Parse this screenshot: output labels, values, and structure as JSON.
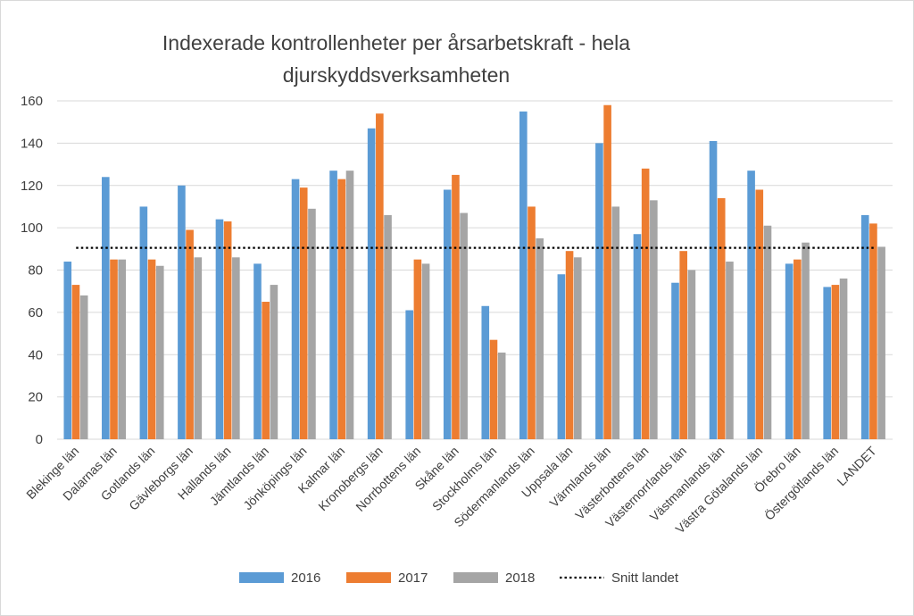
{
  "chart_data": {
    "type": "bar",
    "title_lines": [
      "Indexerade kontrollenheter per årsarbetskraft - hela",
      "djurskyddsverksamheten"
    ],
    "categories": [
      "Blekinge län",
      "Dalarnas län",
      "Gotlands län",
      "Gävleborgs län",
      "Hallands län",
      "Jämtlands län",
      "Jönköpings län",
      "Kalmar län",
      "Kronobergs län",
      "Norrbottens län",
      "Skåne län",
      "Stockholms län",
      "Södermanlands län",
      "Uppsala län",
      "Värmlands län",
      "Västerbottens län",
      "Västernorrlands län",
      "Västmanlands län",
      "Västra Götalands län",
      "Örebro län",
      "Östergötlands län",
      "LANDET"
    ],
    "series": [
      {
        "name": "2016",
        "color": "#5b9bd5",
        "values": [
          84,
          124,
          110,
          120,
          104,
          83,
          123,
          127,
          147,
          61,
          118,
          63,
          155,
          78,
          140,
          97,
          74,
          141,
          127,
          83,
          72,
          106
        ]
      },
      {
        "name": "2017",
        "color": "#ed7d31",
        "values": [
          73,
          85,
          85,
          99,
          103,
          65,
          119,
          123,
          154,
          85,
          125,
          47,
          110,
          89,
          158,
          128,
          89,
          114,
          118,
          85,
          73,
          102
        ]
      },
      {
        "name": "2018",
        "color": "#a5a5a5",
        "values": [
          68,
          85,
          82,
          86,
          86,
          73,
          109,
          127,
          106,
          83,
          107,
          41,
          95,
          86,
          110,
          113,
          80,
          84,
          101,
          93,
          76,
          91
        ]
      }
    ],
    "reference_line": {
      "name": "Snitt landet",
      "value": 90.5,
      "color": "#000000"
    },
    "ylim": [
      0,
      160
    ],
    "yticks": [
      "0",
      "20",
      "40",
      "60",
      "80",
      "100",
      "120",
      "140",
      "160"
    ],
    "grid": true,
    "legend_position": "bottom",
    "xlabel": "",
    "ylabel": ""
  }
}
